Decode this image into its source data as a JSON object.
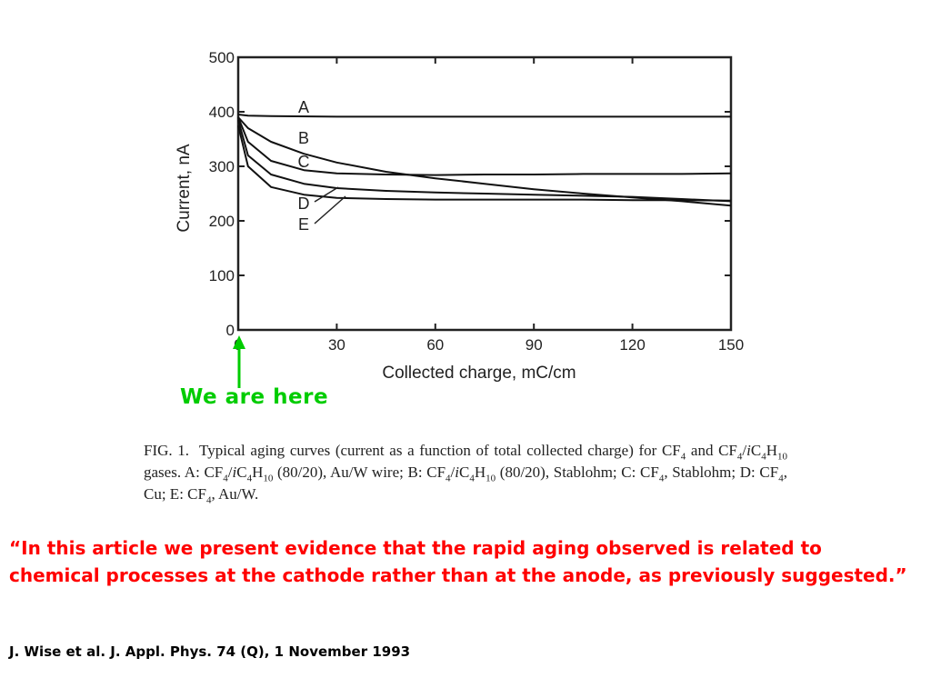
{
  "chart_data": {
    "type": "line",
    "xlabel": "Collected charge, mC/cm",
    "ylabel": "Current, nA",
    "xlim": [
      0,
      150
    ],
    "ylim": [
      0,
      500
    ],
    "xticks": [
      0,
      30,
      60,
      90,
      120,
      150
    ],
    "yticks": [
      0,
      100,
      200,
      300,
      400,
      500
    ],
    "xtick_labels": [
      "0",
      "30",
      "60",
      "90",
      "120",
      "150"
    ],
    "ytick_labels": [
      "0",
      "100",
      "200",
      "300",
      "400",
      "500"
    ],
    "grid": false,
    "series": [
      {
        "name": "A",
        "x": [
          0,
          3,
          10,
          30,
          60,
          90,
          120,
          150
        ],
        "y": [
          395,
          393,
          392,
          391,
          391,
          391,
          391,
          391
        ]
      },
      {
        "name": "B",
        "x": [
          0,
          3,
          10,
          20,
          30,
          45,
          60,
          75,
          90,
          105,
          120,
          135,
          150
        ],
        "y": [
          390,
          370,
          345,
          323,
          307,
          290,
          278,
          268,
          258,
          250,
          243,
          236,
          228
        ]
      },
      {
        "name": "C",
        "x": [
          0,
          3,
          10,
          20,
          30,
          45,
          60,
          75,
          90,
          105,
          120,
          135,
          150
        ],
        "y": [
          390,
          345,
          310,
          293,
          287,
          285,
          284,
          285,
          285,
          286,
          286,
          286,
          287
        ]
      },
      {
        "name": "D",
        "x": [
          0,
          3,
          10,
          20,
          30,
          45,
          60,
          75,
          90,
          105,
          120,
          135,
          150
        ],
        "y": [
          385,
          320,
          285,
          268,
          260,
          255,
          252,
          250,
          248,
          246,
          244,
          240,
          236
        ]
      },
      {
        "name": "E",
        "x": [
          0,
          3,
          10,
          20,
          30,
          45,
          60,
          75,
          90,
          105,
          120,
          135,
          150
        ],
        "y": [
          375,
          300,
          262,
          248,
          242,
          240,
          239,
          239,
          239,
          239,
          238,
          238,
          237
        ]
      }
    ],
    "series_labels": [
      "A",
      "B",
      "C",
      "D",
      "E"
    ]
  },
  "annotation": {
    "here_label": "We are here",
    "arrow_x": 0,
    "color": "#00cc00"
  },
  "caption": {
    "fig_label": "FIG. 1.",
    "intro": "Typical aging curves (current as a function of total collected charge) for CF",
    "parts": [
      "CF",
      "4",
      " and CF",
      "4",
      "/",
      "i",
      "C",
      "4",
      "H",
      "10",
      " gases. A: CF",
      "4",
      "/",
      "i",
      "C",
      "4",
      "H",
      "10",
      " (80/20), Au/W wire; B: CF",
      "4",
      "/",
      "i",
      "C",
      "4",
      "H",
      "10",
      " (80/20), Stablohm; C: CF",
      "4",
      ", Stablohm; D: CF",
      "4",
      ", Cu; E: CF",
      "4",
      ", Au/W."
    ]
  },
  "quote": {
    "text": "“In this article we present evidence that the rapid aging observed is related to chemical processes at the cathode rather than at the anode, as previously suggested.”",
    "color": "#ff0000"
  },
  "citation": {
    "text": "J. Wise et al. J. Appl. Phys. 74 (Q), 1 November 1993"
  }
}
